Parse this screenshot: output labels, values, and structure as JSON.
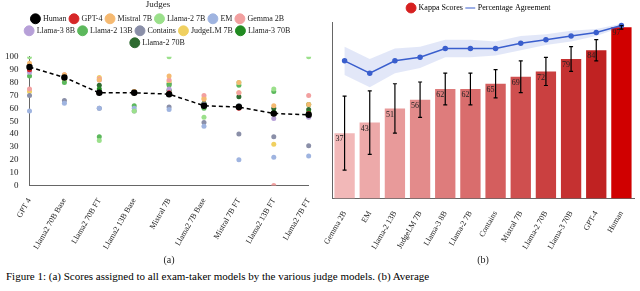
{
  "caption": "Figure 1: (a) Scores assigned to all exam-taker models by the various judge models. (b) Average",
  "chart_data": [
    {
      "type": "scatter",
      "x_label": "(a)",
      "legend_title": "Judges",
      "legend": "top",
      "grid": false,
      "categories": [
        "GPT 4",
        "Llama2 70B Base",
        "Llama2 70B FT",
        "Llama2 13B Base",
        "Mistral 7B",
        "Llama2 7B Base",
        "Mistral 7B FT",
        "Llama2 13B FT",
        "Llama2 7B FT"
      ],
      "ylim": [
        0,
        100
      ],
      "yticks": [
        0,
        10,
        20,
        30,
        40,
        50,
        60,
        70,
        80,
        90,
        100
      ],
      "series": [
        {
          "name": "Human",
          "color": "#000000",
          "type": "line",
          "line_style": "dashed",
          "marker": "circle",
          "values": [
            92,
            84,
            72,
            72,
            71,
            62,
            61,
            56,
            55
          ]
        },
        {
          "name": "GPT-4",
          "color": "#d62728",
          "type": "scatter",
          "marker": "circle",
          "values": [
            90,
            84,
            72,
            72,
            72,
            62,
            60,
            56,
            56
          ]
        },
        {
          "name": "Mistral 7B",
          "color": "#f5b971",
          "type": "scatter",
          "marker": "circle",
          "values": [
            95,
            86,
            82,
            73,
            85,
            67,
            80,
            62,
            63
          ]
        },
        {
          "name": "Llama-2 7B",
          "color": "#9be08b",
          "type": "scatter",
          "marker": "circle",
          "values": [
            100,
            83,
            35,
            58,
            100,
            53,
            80,
            75,
            100
          ]
        },
        {
          "name": "EM",
          "color": "#9fb4e0",
          "type": "scatter",
          "marker": "circle",
          "values": [
            58,
            64,
            60,
            60,
            59,
            46,
            20,
            22,
            23
          ]
        },
        {
          "name": "Gemma 2B",
          "color": "#f2a0a0",
          "type": "scatter",
          "marker": "circle",
          "values": [
            75,
            86,
            83,
            73,
            82,
            70,
            72,
            0,
            70
          ]
        },
        {
          "name": "Llama-3 8B",
          "color": "#b7a0d8",
          "type": "scatter",
          "marker": "circle",
          "values": [
            88,
            84,
            82,
            72,
            75,
            63,
            62,
            52,
            53
          ]
        },
        {
          "name": "Llama-2 13B",
          "color": "#5cb85c",
          "type": "scatter",
          "marker": "circle",
          "values": [
            85,
            80,
            38,
            62,
            78,
            60,
            78,
            73,
            63
          ]
        },
        {
          "name": "Contains",
          "color": "#8a8fa8",
          "type": "scatter",
          "marker": "circle",
          "values": [
            70,
            66,
            60,
            58,
            61,
            49,
            40,
            38,
            31
          ]
        },
        {
          "name": "JudgeLM 7B",
          "color": "#f0d060",
          "type": "scatter",
          "marker": "circle",
          "values": [
            73,
            82,
            84,
            72,
            81,
            68,
            72,
            32,
            63
          ]
        },
        {
          "name": "Llama-3 70B",
          "color": "#228b22",
          "type": "scatter",
          "marker": "circle",
          "values": [
            92,
            84,
            75,
            73,
            74,
            63,
            62,
            57,
            57
          ]
        },
        {
          "name": "Llama-2 70B",
          "color": "#2e6b30",
          "type": "scatter",
          "marker": "circle",
          "values": [
            90,
            85,
            78,
            72,
            79,
            64,
            69,
            60,
            59
          ]
        }
      ]
    },
    {
      "type": "bar",
      "x_label": "(b)",
      "legend": "top",
      "grid": false,
      "tick_labels": "x",
      "data_labels": true,
      "categories": [
        "Gemma 2B",
        "EM",
        "Llama-2 13B",
        "JudgeLM 7B",
        "Llama-3 8B",
        "Llama-2 7B",
        "Contains",
        "Mistral 7B",
        "Llama-2 70B",
        "Llama-3 70B",
        "GPT-4",
        "Human"
      ],
      "ylim": [
        0,
        100
      ],
      "series": [
        {
          "name": "Kappa Scores",
          "type": "bar",
          "color": "#d62020",
          "colors": [
            "#f2b8b8",
            "#eda9a9",
            "#e89a9a",
            "#e38b8b",
            "#de7c7c",
            "#d96d6d",
            "#d45e5e",
            "#cf4f4f",
            "#ca4040",
            "#c53131",
            "#c02222",
            "#d00000"
          ],
          "values": [
            37,
            43,
            51,
            56,
            62,
            62,
            65,
            69,
            72,
            79,
            84,
            97
          ],
          "errors": [
            21,
            18,
            14,
            10,
            9,
            9,
            8,
            9,
            8,
            7,
            6,
            1
          ]
        },
        {
          "name": "Percentage Agreement",
          "type": "line",
          "color": "#3a5fcd",
          "marker": "circle",
          "values": [
            78,
            71,
            78,
            80,
            85,
            85,
            85,
            88,
            90,
            92,
            94,
            98
          ],
          "errors": [
            8,
            8,
            7,
            6,
            5,
            5,
            4,
            4,
            3,
            3,
            2,
            1
          ]
        }
      ]
    }
  ]
}
